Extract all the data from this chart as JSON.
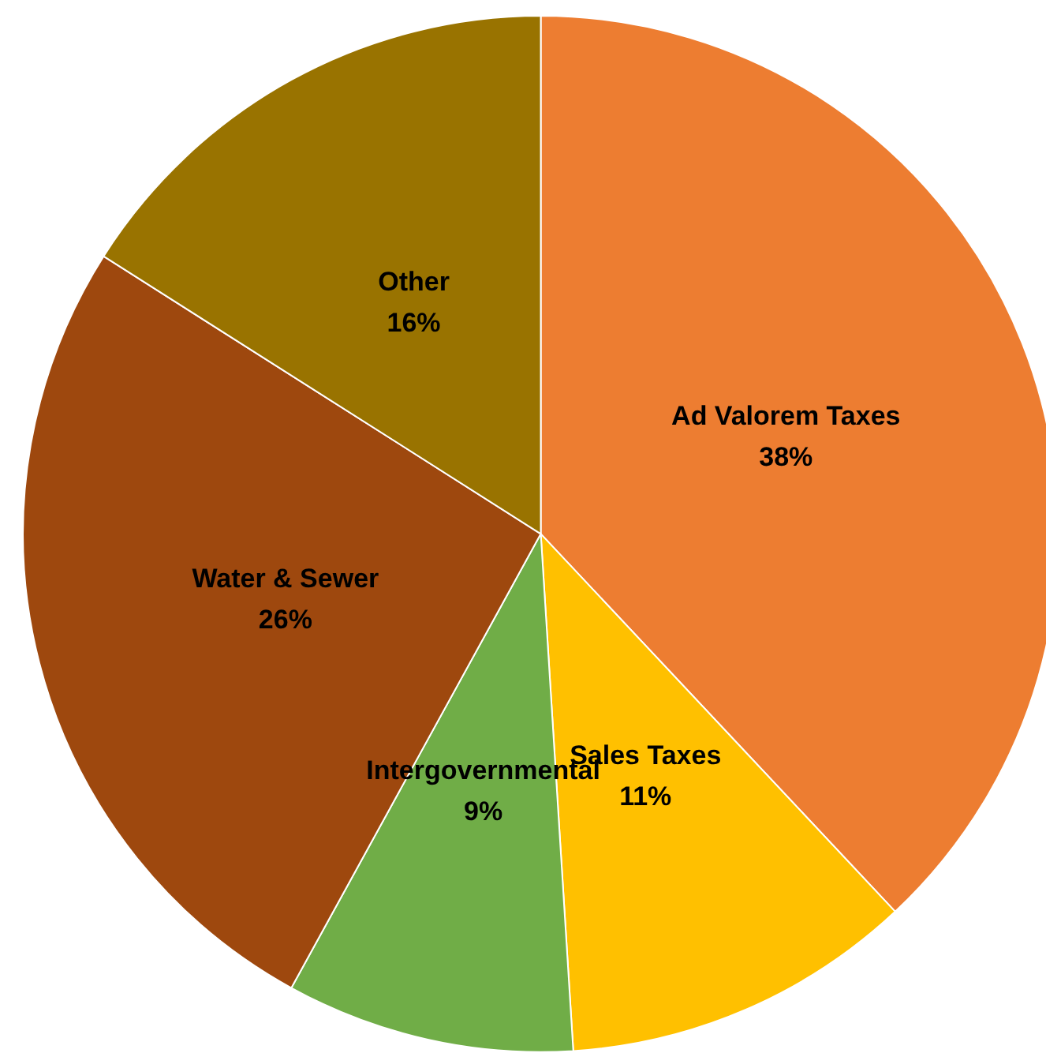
{
  "chart_data": {
    "type": "pie",
    "categories": [
      "Ad Valorem Taxes",
      "Sales Taxes",
      "Intergovernmental",
      "Water & Sewer",
      "Other"
    ],
    "values": [
      38,
      11,
      9,
      26,
      16
    ],
    "colors": [
      "#ed7d31",
      "#ffc000",
      "#70ad47",
      "#9e480e",
      "#997300"
    ],
    "value_labels": [
      "38%",
      "11%",
      "9%",
      "26%",
      "16%"
    ],
    "legend": false
  }
}
